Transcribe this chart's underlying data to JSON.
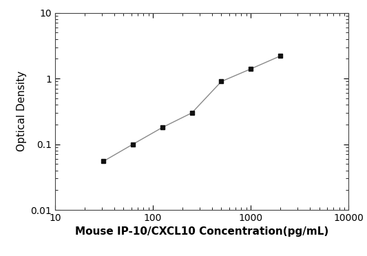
{
  "x_values": [
    31.25,
    62.5,
    125,
    250,
    500,
    1000,
    2000
  ],
  "y_values": [
    0.055,
    0.1,
    0.18,
    0.3,
    0.9,
    1.4,
    2.2
  ],
  "xlabel": "Mouse IP-10/CXCL10 Concentration(pg/mL)",
  "ylabel": "Optical Density",
  "xlim": [
    10,
    10000
  ],
  "ylim": [
    0.01,
    10
  ],
  "line_color": "#888888",
  "marker_color": "#111111",
  "marker": "s",
  "marker_size": 5,
  "line_width": 1.0,
  "background_color": "#ffffff",
  "xlabel_fontsize": 11,
  "ylabel_fontsize": 11,
  "tick_fontsize": 10,
  "y_tick_labels": [
    "0.01",
    "0.1",
    "1",
    "10"
  ],
  "y_tick_values": [
    0.01,
    0.1,
    1,
    10
  ],
  "x_tick_labels": [
    "10",
    "100",
    "1000",
    "10000"
  ],
  "x_tick_values": [
    10,
    100,
    1000,
    10000
  ]
}
